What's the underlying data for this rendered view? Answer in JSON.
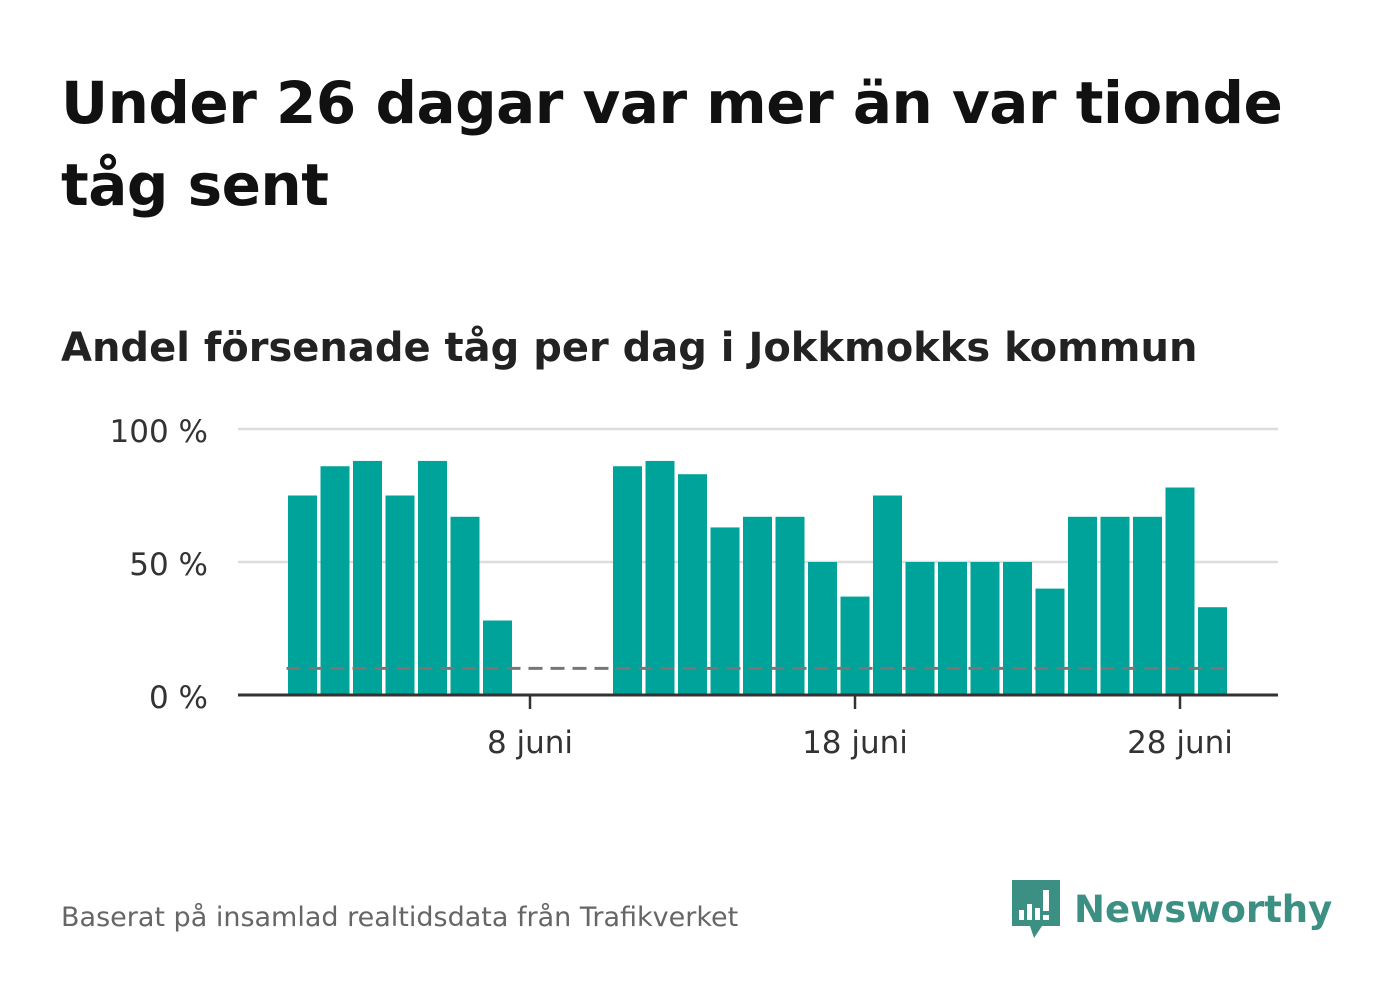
{
  "title": "Under 26 dagar var mer än var tionde tåg sent",
  "subtitle": "Andel försenade tåg per dag i Jokkmokks kommun",
  "source": "Baserat på insamlad realtidsdata från Trafikverket",
  "brand": {
    "name": "Newsworthy",
    "color": "#3b8f83",
    "icon": "newsworthy-logo-icon"
  },
  "colors": {
    "bar": "#00a39a",
    "grid": "#dddddd",
    "axis": "#333333",
    "reference": "#777777"
  },
  "chart_data": {
    "type": "bar",
    "x_unit": "date",
    "x": [
      "2023-06-01",
      "2023-06-02",
      "2023-06-03",
      "2023-06-04",
      "2023-06-05",
      "2023-06-06",
      "2023-06-07",
      "2023-06-08",
      "2023-06-09",
      "2023-06-10",
      "2023-06-11",
      "2023-06-12",
      "2023-06-13",
      "2023-06-14",
      "2023-06-15",
      "2023-06-16",
      "2023-06-17",
      "2023-06-18",
      "2023-06-19",
      "2023-06-20",
      "2023-06-21",
      "2023-06-22",
      "2023-06-23",
      "2023-06-24",
      "2023-06-25",
      "2023-06-26",
      "2023-06-27",
      "2023-06-28",
      "2023-06-29"
    ],
    "values": [
      75,
      86,
      88,
      75,
      88,
      67,
      28,
      null,
      null,
      null,
      86,
      88,
      83,
      63,
      67,
      67,
      50,
      37,
      75,
      50,
      50,
      50,
      50,
      40,
      67,
      67,
      67,
      78,
      33
    ],
    "ylim": [
      0,
      100
    ],
    "y_ticks": [
      0,
      50,
      100
    ],
    "y_tick_labels": [
      "0 %",
      "50 %",
      "100 %"
    ],
    "x_ticks": [
      "2023-06-08",
      "2023-06-18",
      "2023-06-28"
    ],
    "x_tick_labels": [
      "8 juni",
      "18 juni",
      "28 juni"
    ],
    "reference_line": {
      "value": 10,
      "style": "dashed"
    },
    "grid": true,
    "legend": "none"
  }
}
